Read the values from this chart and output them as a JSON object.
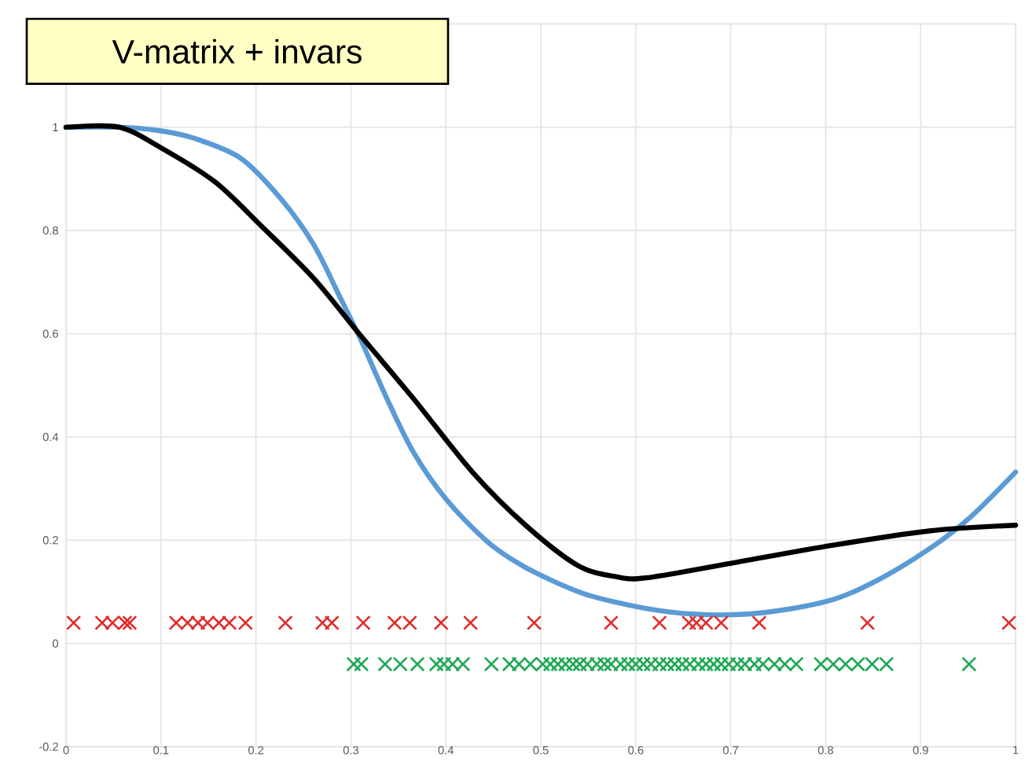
{
  "chart_data": {
    "type": "line",
    "title": "V-matrix + invars",
    "xlim": [
      0,
      1
    ],
    "ylim": [
      -0.2,
      1.2
    ],
    "xticks": [
      0,
      0.1,
      0.2,
      0.3,
      0.4,
      0.5,
      0.6,
      0.7,
      0.8,
      0.9,
      1
    ],
    "yticks": [
      -0.2,
      0,
      0.2,
      0.4,
      0.6,
      0.8,
      1,
      {
        "value": 1.2,
        "label": null
      }
    ],
    "grid": true,
    "series": [
      {
        "color": "#5b9bd5",
        "marker": "none",
        "x": [
          0,
          0.059,
          0.1,
          0.136,
          0.184,
          0.226,
          0.261,
          0.289,
          0.31,
          0.338,
          0.366,
          0.4,
          0.442,
          0.472,
          0.5,
          0.553,
          0.636,
          0.718,
          0.8,
          0.854,
          0.909,
          0.952,
          1.0
        ],
        "values": [
          1.0,
          1.0,
          0.993,
          0.978,
          0.94,
          0.862,
          0.772,
          0.669,
          0.59,
          0.474,
          0.37,
          0.28,
          0.2,
          0.16,
          0.132,
          0.092,
          0.061,
          0.057,
          0.081,
          0.122,
          0.183,
          0.244,
          0.332
        ]
      },
      {
        "color": "#000000",
        "marker": "none",
        "x": [
          0,
          0.056,
          0.101,
          0.157,
          0.205,
          0.261,
          0.31,
          0.366,
          0.428,
          0.484,
          0.539,
          0.58,
          0.61,
          0.69,
          0.8,
          0.909,
          1.0
        ],
        "values": [
          1.0,
          1.0,
          0.959,
          0.894,
          0.81,
          0.707,
          0.597,
          0.474,
          0.332,
          0.229,
          0.151,
          0.129,
          0.127,
          0.152,
          0.188,
          0.218,
          0.229
        ]
      },
      {
        "type": "scatter",
        "color": "#e02b2b",
        "marker": "cross",
        "x": [
          0.008,
          0.038,
          0.049,
          0.062,
          0.067,
          0.116,
          0.128,
          0.139,
          0.149,
          0.161,
          0.172,
          0.189,
          0.231,
          0.27,
          0.28,
          0.313,
          0.346,
          0.362,
          0.395,
          0.426,
          0.493,
          0.574,
          0.625,
          0.656,
          0.664,
          0.674,
          0.69,
          0.73,
          0.844,
          0.993
        ],
        "values": [
          0.04,
          0.04,
          0.04,
          0.04,
          0.04,
          0.04,
          0.04,
          0.04,
          0.04,
          0.04,
          0.04,
          0.04,
          0.04,
          0.04,
          0.04,
          0.04,
          0.04,
          0.04,
          0.04,
          0.04,
          0.04,
          0.04,
          0.04,
          0.04,
          0.04,
          0.04,
          0.04,
          0.04,
          0.04,
          0.04
        ]
      },
      {
        "type": "scatter",
        "color": "#1fa855",
        "marker": "cross",
        "x": [
          0.303,
          0.311,
          0.336,
          0.352,
          0.37,
          0.39,
          0.398,
          0.407,
          0.418,
          0.448,
          0.467,
          0.477,
          0.489,
          0.502,
          0.51,
          0.518,
          0.526,
          0.534,
          0.541,
          0.549,
          0.559,
          0.567,
          0.574,
          0.584,
          0.592,
          0.6,
          0.608,
          0.616,
          0.625,
          0.633,
          0.641,
          0.649,
          0.657,
          0.666,
          0.674,
          0.682,
          0.69,
          0.698,
          0.707,
          0.715,
          0.725,
          0.734,
          0.746,
          0.757,
          0.769,
          0.795,
          0.808,
          0.821,
          0.834,
          0.849,
          0.864,
          0.951
        ],
        "values": [
          -0.04,
          -0.04,
          -0.04,
          -0.04,
          -0.04,
          -0.04,
          -0.04,
          -0.04,
          -0.04,
          -0.04,
          -0.04,
          -0.04,
          -0.04,
          -0.04,
          -0.04,
          -0.04,
          -0.04,
          -0.04,
          -0.04,
          -0.04,
          -0.04,
          -0.04,
          -0.04,
          -0.04,
          -0.04,
          -0.04,
          -0.04,
          -0.04,
          -0.04,
          -0.04,
          -0.04,
          -0.04,
          -0.04,
          -0.04,
          -0.04,
          -0.04,
          -0.04,
          -0.04,
          -0.04,
          -0.04,
          -0.04,
          -0.04,
          -0.04,
          -0.04,
          -0.04,
          -0.04,
          -0.04,
          -0.04,
          -0.04,
          -0.04,
          -0.04,
          -0.04
        ]
      }
    ]
  }
}
